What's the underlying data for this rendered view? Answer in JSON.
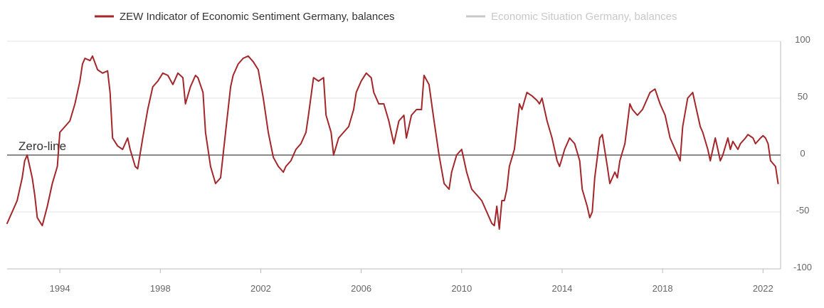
{
  "chart_data": {
    "type": "line",
    "title": "",
    "xlabel": "",
    "ylabel": "",
    "xlim": [
      1991.9,
      2022.7
    ],
    "ylim": [
      -100,
      100
    ],
    "x_ticks": [
      1994,
      1998,
      2002,
      2006,
      2010,
      2014,
      2018,
      2022
    ],
    "x_tick_labels": [
      "1994",
      "1998",
      "2002",
      "2006",
      "2010",
      "2014",
      "2018",
      "2022"
    ],
    "y_ticks": [
      100,
      50,
      0,
      -50,
      -100
    ],
    "y_tick_labels": [
      "100",
      "50",
      "0",
      "-50",
      "-100"
    ],
    "grid": true,
    "legend_position": "top",
    "zero_line_label": "Zero-line",
    "colors": {
      "sentiment": "#a3262a",
      "situation": "#c8c8c8",
      "grid": "#e3e3e3",
      "zero_line": "#8a8a8a",
      "axis": "#bbbbbb"
    },
    "series": [
      {
        "name": "ZEW Indicator of Economic Sentiment Germany, balances",
        "visible": true,
        "points": [
          [
            1991.9,
            -60
          ],
          [
            1992.1,
            -50
          ],
          [
            1992.3,
            -40
          ],
          [
            1992.5,
            -20
          ],
          [
            1992.6,
            -5
          ],
          [
            1992.7,
            0
          ],
          [
            1992.9,
            -20
          ],
          [
            1993.0,
            -35
          ],
          [
            1993.1,
            -55
          ],
          [
            1993.3,
            -62
          ],
          [
            1993.5,
            -45
          ],
          [
            1993.7,
            -25
          ],
          [
            1993.9,
            -10
          ],
          [
            1994.0,
            20
          ],
          [
            1994.2,
            25
          ],
          [
            1994.4,
            30
          ],
          [
            1994.6,
            45
          ],
          [
            1994.8,
            65
          ],
          [
            1994.9,
            80
          ],
          [
            1995.0,
            85
          ],
          [
            1995.2,
            83
          ],
          [
            1995.3,
            87
          ],
          [
            1995.5,
            75
          ],
          [
            1995.7,
            72
          ],
          [
            1995.9,
            74
          ],
          [
            1996.0,
            55
          ],
          [
            1996.1,
            15
          ],
          [
            1996.3,
            8
          ],
          [
            1996.5,
            5
          ],
          [
            1996.7,
            15
          ],
          [
            1996.8,
            5
          ],
          [
            1997.0,
            -10
          ],
          [
            1997.1,
            -12
          ],
          [
            1997.3,
            15
          ],
          [
            1997.5,
            40
          ],
          [
            1997.7,
            60
          ],
          [
            1997.9,
            65
          ],
          [
            1998.1,
            72
          ],
          [
            1998.3,
            70
          ],
          [
            1998.5,
            62
          ],
          [
            1998.7,
            72
          ],
          [
            1998.9,
            68
          ],
          [
            1999.0,
            45
          ],
          [
            1999.2,
            60
          ],
          [
            1999.4,
            70
          ],
          [
            1999.5,
            68
          ],
          [
            1999.7,
            55
          ],
          [
            1999.8,
            20
          ],
          [
            2000.0,
            -10
          ],
          [
            2000.2,
            -25
          ],
          [
            2000.4,
            -20
          ],
          [
            2000.6,
            20
          ],
          [
            2000.8,
            60
          ],
          [
            2000.9,
            70
          ],
          [
            2001.1,
            80
          ],
          [
            2001.3,
            85
          ],
          [
            2001.5,
            87
          ],
          [
            2001.7,
            82
          ],
          [
            2001.9,
            75
          ],
          [
            2002.1,
            50
          ],
          [
            2002.3,
            20
          ],
          [
            2002.5,
            -2
          ],
          [
            2002.7,
            -10
          ],
          [
            2002.9,
            -15
          ],
          [
            2003.0,
            -10
          ],
          [
            2003.2,
            -5
          ],
          [
            2003.4,
            5
          ],
          [
            2003.6,
            10
          ],
          [
            2003.8,
            20
          ],
          [
            2003.9,
            35
          ],
          [
            2004.1,
            68
          ],
          [
            2004.3,
            65
          ],
          [
            2004.5,
            68
          ],
          [
            2004.6,
            35
          ],
          [
            2004.8,
            20
          ],
          [
            2004.9,
            0
          ],
          [
            2005.1,
            15
          ],
          [
            2005.3,
            20
          ],
          [
            2005.5,
            25
          ],
          [
            2005.7,
            40
          ],
          [
            2005.8,
            55
          ],
          [
            2006.0,
            65
          ],
          [
            2006.2,
            72
          ],
          [
            2006.4,
            68
          ],
          [
            2006.5,
            55
          ],
          [
            2006.7,
            45
          ],
          [
            2006.9,
            45
          ],
          [
            2007.1,
            30
          ],
          [
            2007.3,
            10
          ],
          [
            2007.5,
            30
          ],
          [
            2007.7,
            35
          ],
          [
            2007.8,
            15
          ],
          [
            2008.0,
            35
          ],
          [
            2008.2,
            40
          ],
          [
            2008.4,
            40
          ],
          [
            2008.5,
            70
          ],
          [
            2008.7,
            62
          ],
          [
            2008.9,
            30
          ],
          [
            2009.1,
            0
          ],
          [
            2009.3,
            -25
          ],
          [
            2009.5,
            -30
          ],
          [
            2009.6,
            -15
          ],
          [
            2009.8,
            0
          ],
          [
            2010.0,
            5
          ],
          [
            2010.2,
            -15
          ],
          [
            2010.4,
            -30
          ],
          [
            2010.6,
            -35
          ],
          [
            2010.8,
            -40
          ],
          [
            2011.0,
            -50
          ],
          [
            2011.2,
            -60
          ],
          [
            2011.3,
            -62
          ],
          [
            2011.4,
            -45
          ],
          [
            2011.5,
            -65
          ],
          [
            2011.6,
            -40
          ],
          [
            2011.7,
            -40
          ],
          [
            2011.8,
            -30
          ],
          [
            2011.9,
            -10
          ],
          [
            2012.1,
            5
          ],
          [
            2012.3,
            45
          ],
          [
            2012.4,
            40
          ],
          [
            2012.6,
            55
          ],
          [
            2012.8,
            52
          ],
          [
            2013.0,
            48
          ],
          [
            2013.1,
            45
          ],
          [
            2013.2,
            50
          ],
          [
            2013.4,
            30
          ],
          [
            2013.6,
            15
          ],
          [
            2013.8,
            -5
          ],
          [
            2013.9,
            -10
          ],
          [
            2014.1,
            5
          ],
          [
            2014.3,
            15
          ],
          [
            2014.5,
            10
          ],
          [
            2014.7,
            -5
          ],
          [
            2014.8,
            -30
          ],
          [
            2015.0,
            -45
          ],
          [
            2015.1,
            -55
          ],
          [
            2015.2,
            -50
          ],
          [
            2015.3,
            -20
          ],
          [
            2015.5,
            15
          ],
          [
            2015.6,
            18
          ],
          [
            2015.8,
            -10
          ],
          [
            2015.9,
            -25
          ],
          [
            2016.1,
            -15
          ],
          [
            2016.2,
            -20
          ],
          [
            2016.3,
            -5
          ],
          [
            2016.5,
            10
          ],
          [
            2016.7,
            45
          ],
          [
            2016.8,
            40
          ],
          [
            2017.0,
            35
          ],
          [
            2017.2,
            40
          ],
          [
            2017.4,
            50
          ],
          [
            2017.5,
            55
          ],
          [
            2017.7,
            58
          ],
          [
            2017.9,
            45
          ],
          [
            2018.1,
            35
          ],
          [
            2018.3,
            15
          ],
          [
            2018.5,
            5
          ],
          [
            2018.7,
            -5
          ],
          [
            2018.8,
            25
          ],
          [
            2019.0,
            50
          ],
          [
            2019.2,
            55
          ],
          [
            2019.3,
            45
          ],
          [
            2019.5,
            25
          ],
          [
            2019.6,
            20
          ],
          [
            2019.8,
            5
          ],
          [
            2019.9,
            -5
          ],
          [
            2020.0,
            5
          ],
          [
            2020.1,
            15
          ],
          [
            2020.2,
            5
          ],
          [
            2020.3,
            -5
          ],
          [
            2020.4,
            0
          ],
          [
            2020.6,
            15
          ],
          [
            2020.7,
            5
          ],
          [
            2020.8,
            12
          ],
          [
            2021.0,
            5
          ],
          [
            2021.1,
            10
          ],
          [
            2021.3,
            15
          ],
          [
            2021.4,
            18
          ],
          [
            2021.6,
            15
          ],
          [
            2021.7,
            10
          ],
          [
            2021.9,
            15
          ],
          [
            2022.0,
            17
          ],
          [
            2022.1,
            15
          ],
          [
            2022.2,
            10
          ],
          [
            2022.3,
            -5
          ],
          [
            2022.5,
            -10
          ],
          [
            2022.6,
            -25
          ]
        ]
      },
      {
        "name": "Economic Situation Germany, balances",
        "visible": false,
        "points": []
      }
    ]
  }
}
